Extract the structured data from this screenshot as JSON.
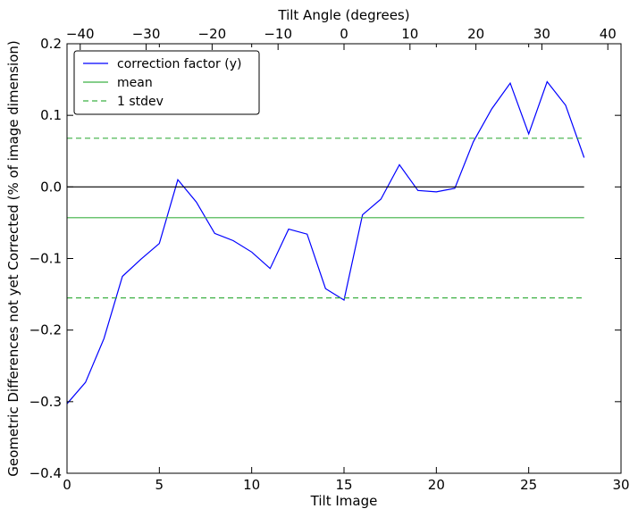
{
  "chart_data": {
    "type": "line",
    "xlabel": "Tilt Image",
    "ylabel": "Geometric Differences not yet Corrected (% of image dimension)",
    "top_xlabel": "Tilt Angle (degrees)",
    "xlim": [
      0,
      30
    ],
    "ylim": [
      -0.4,
      0.2
    ],
    "top_xlim": [
      -42,
      42
    ],
    "xticks": [
      0,
      5,
      10,
      15,
      20,
      25,
      30
    ],
    "yticks": [
      -0.4,
      -0.3,
      -0.2,
      -0.1,
      0.0,
      0.1,
      0.2
    ],
    "top_xticks": [
      -40,
      -30,
      -20,
      -10,
      0,
      10,
      20,
      30,
      40
    ],
    "grid": false,
    "legend_position": "top-left",
    "series": [
      {
        "name": "correction factor (y)",
        "color": "#0000ff",
        "style": "solid",
        "x": [
          0,
          1,
          2,
          3,
          4,
          5,
          6,
          7,
          8,
          9,
          10,
          11,
          12,
          13,
          14,
          15,
          16,
          17,
          18,
          19,
          20,
          21,
          22,
          23,
          24,
          25,
          26,
          27,
          28
        ],
        "y": [
          -0.303,
          -0.273,
          -0.212,
          -0.125,
          -0.101,
          -0.079,
          0.01,
          -0.021,
          -0.065,
          -0.075,
          -0.091,
          -0.114,
          -0.059,
          -0.066,
          -0.142,
          -0.158,
          -0.039,
          -0.017,
          0.031,
          -0.005,
          -0.007,
          -0.002,
          0.063,
          0.109,
          0.145,
          0.074,
          0.147,
          0.114,
          0.041
        ]
      },
      {
        "name": "mean",
        "color": "#3cb043",
        "style": "solid",
        "x": [
          0,
          28
        ],
        "y": [
          -0.043,
          -0.043
        ]
      },
      {
        "name": "1 stdev",
        "color": "#3cb043",
        "style": "dashed",
        "x": [
          0,
          28
        ],
        "y": [
          0.068,
          0.068
        ]
      },
      {
        "x": [
          0,
          28
        ],
        "y": [
          -0.155,
          -0.155
        ],
        "color": "#3cb043",
        "style": "dashed"
      },
      {
        "x": [
          0,
          28
        ],
        "y": [
          0.0,
          0.0
        ],
        "color": "#000000",
        "style": "solid"
      }
    ]
  }
}
